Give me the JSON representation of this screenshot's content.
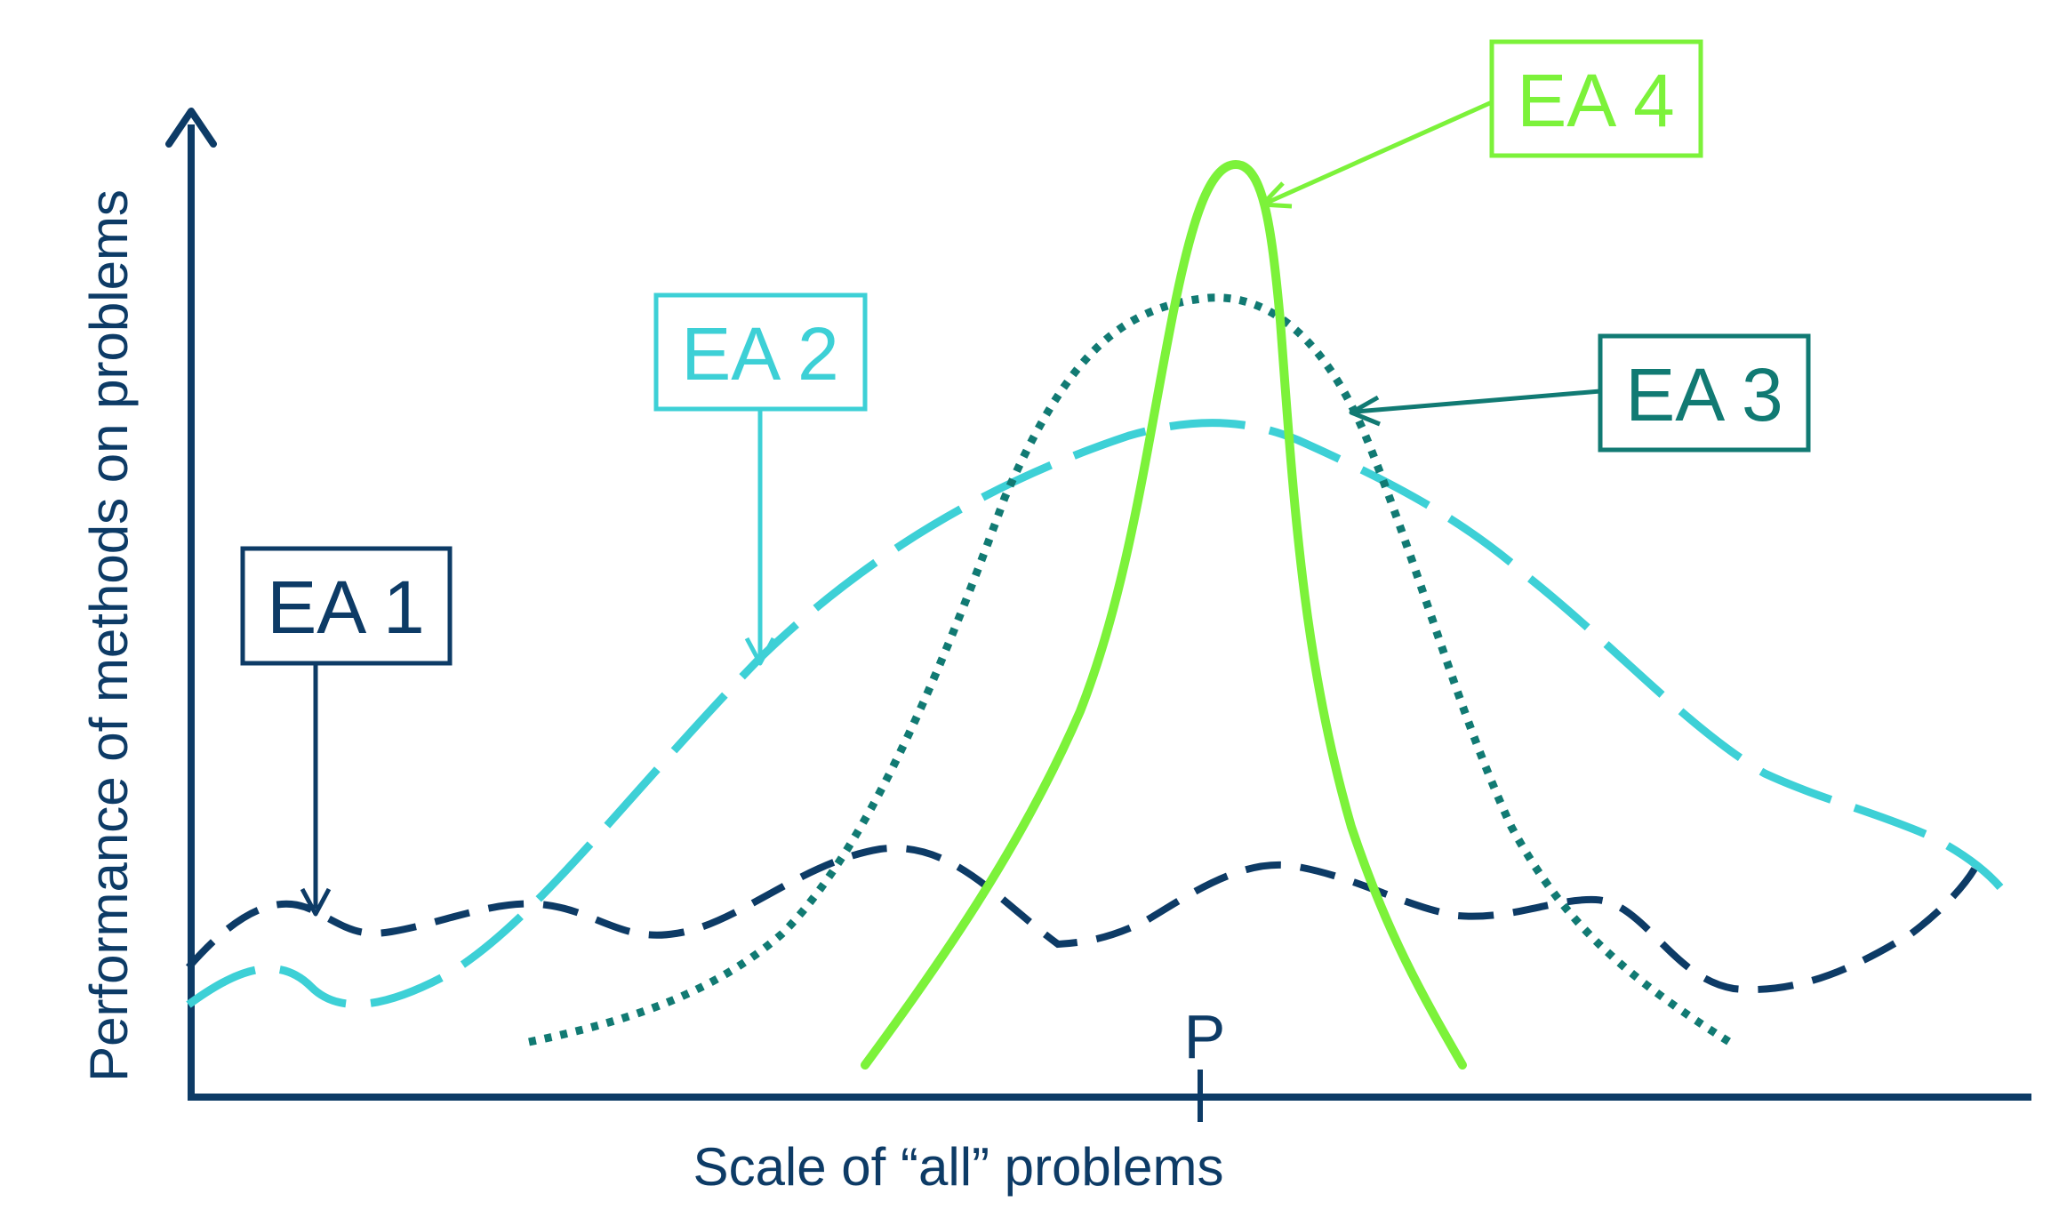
{
  "diagram": {
    "x_axis_label": "Scale of “all” problems",
    "y_axis_label": "Performance of methods on problems",
    "p_marker_label": "P",
    "colors": {
      "axis": "#0d3b66",
      "ea1": "#0d3b66",
      "ea2": "#3dd0d6",
      "ea3": "#117a73",
      "ea4": "#7cf23a"
    },
    "series": [
      {
        "label": "EA 1",
        "style": "dashed",
        "description_hint": "broad-low"
      },
      {
        "label": "EA 2",
        "style": "long-dashed",
        "description_hint": "broad-medium"
      },
      {
        "label": "EA 3",
        "style": "dotted",
        "description_hint": "narrow-high"
      },
      {
        "label": "EA 4",
        "style": "solid",
        "description_hint": "very-narrow-highest"
      }
    ]
  }
}
